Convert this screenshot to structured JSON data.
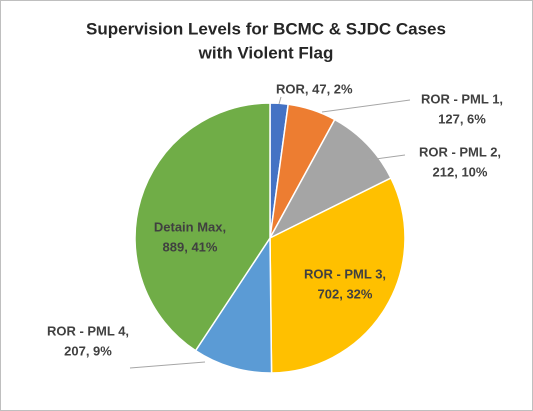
{
  "chart_data": {
    "type": "pie",
    "title": [
      "Supervision Levels for BCMC & SJDC Cases",
      "with Violent Flag"
    ],
    "values": [
      47,
      127,
      212,
      702,
      207,
      889
    ],
    "value_labels": [
      [
        "ROR, 47, 2%"
      ],
      [
        "ROR - PML 1,",
        "127, 6%"
      ],
      [
        "ROR - PML 2,",
        "212, 10%"
      ],
      [
        "ROR - PML 3,",
        "702, 32%"
      ],
      [
        "ROR - PML 4,",
        "207, 9%"
      ],
      [
        "Detain Max,",
        "889, 41%"
      ]
    ],
    "colors": [
      "#4472c4",
      "#ed7d31",
      "#a5a5a5",
      "#ffc000",
      "#5b9bd5",
      "#70ad47"
    ]
  }
}
